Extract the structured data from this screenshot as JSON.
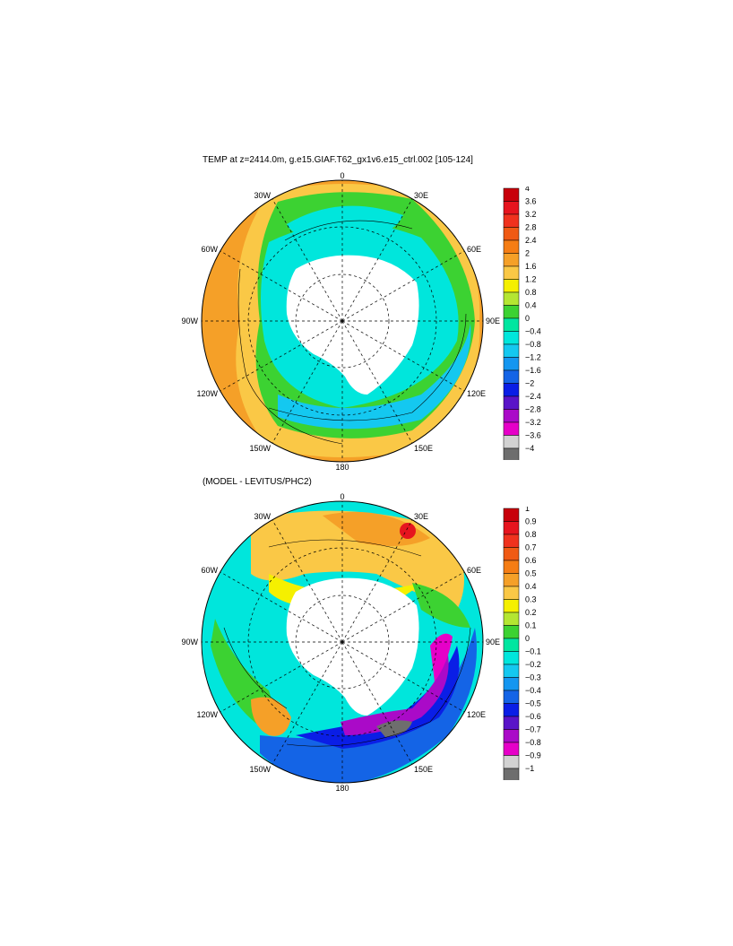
{
  "panels": [
    {
      "title": "TEMP at z=2414.0m, g.e15.GIAF.T62_gx1v6.e15_ctrl.002 [105-124]",
      "lon_labels": [
        "0",
        "30E",
        "60E",
        "90E",
        "120E",
        "150E",
        "180",
        "150W",
        "120W",
        "90W",
        "60W",
        "30W"
      ],
      "colorbar": {
        "labels": [
          "4",
          "3.6",
          "3.2",
          "2.8",
          "2.4",
          "2",
          "1.6",
          "1.2",
          "0.8",
          "0.4",
          "0",
          "−0.4",
          "−0.8",
          "−1.2",
          "−1.6",
          "−2",
          "−2.4",
          "−2.8",
          "−3.2",
          "−3.6",
          "−4"
        ],
        "colors": [
          "#c8000a",
          "#e6141e",
          "#f0321e",
          "#f05a14",
          "#f57d14",
          "#f5a028",
          "#fac846",
          "#f5f000",
          "#b4e632",
          "#3cd232",
          "#00e6a0",
          "#00e6dc",
          "#14c8f0",
          "#1496f0",
          "#1464e6",
          "#0a1ee6",
          "#5a14c8",
          "#aa0ac8",
          "#e600c8",
          "#d2d2d2",
          "#6e6e6e"
        ]
      }
    },
    {
      "title": "(MODEL - LEVITUS/PHC2)",
      "lon_labels": [
        "0",
        "30E",
        "60E",
        "90E",
        "120E",
        "150E",
        "180",
        "150W",
        "120W",
        "90W",
        "60W",
        "30W"
      ],
      "colorbar": {
        "labels": [
          "1",
          "0.9",
          "0.8",
          "0.7",
          "0.6",
          "0.5",
          "0.4",
          "0.3",
          "0.2",
          "0.1",
          "0",
          "−0.1",
          "−0.2",
          "−0.3",
          "−0.4",
          "−0.5",
          "−0.6",
          "−0.7",
          "−0.8",
          "−0.9",
          "−1"
        ],
        "colors": [
          "#c8000a",
          "#e6141e",
          "#f0321e",
          "#f05a14",
          "#f57d14",
          "#f5a028",
          "#fac846",
          "#f5f000",
          "#b4e632",
          "#3cd232",
          "#00e6a0",
          "#00e6dc",
          "#14c8f0",
          "#1496f0",
          "#1464e6",
          "#0a1ee6",
          "#5a14c8",
          "#aa0ac8",
          "#e600c8",
          "#d2d2d2",
          "#6e6e6e"
        ]
      }
    }
  ]
}
